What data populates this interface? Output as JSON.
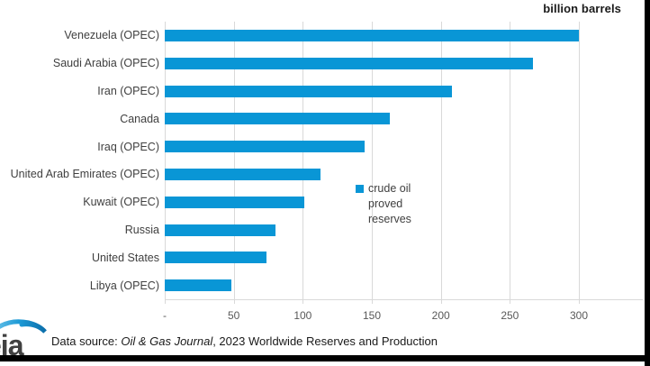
{
  "chart_data": {
    "type": "bar",
    "orientation": "horizontal",
    "unit_label": "billion barrels",
    "categories": [
      "Venezuela (OPEC)",
      "Saudi Arabia (OPEC)",
      "Iran (OPEC)",
      "Canada",
      "Iraq (OPEC)",
      "United Arab Emirates (OPEC)",
      "Kuwait (OPEC)",
      "Russia",
      "United States",
      "Libya (OPEC)"
    ],
    "series": [
      {
        "name": "crude oil proved reserves",
        "values": [
          300,
          267,
          208,
          163,
          145,
          113,
          101,
          80,
          74,
          48
        ]
      }
    ],
    "xlabel": "",
    "ylabel": "",
    "xlim": [
      0,
      350
    ],
    "xticks": [
      {
        "label": "-",
        "value": 0
      },
      {
        "label": "50",
        "value": 50
      },
      {
        "label": "100",
        "value": 100
      },
      {
        "label": "150",
        "value": 150
      },
      {
        "label": "200",
        "value": 200
      },
      {
        "label": "250",
        "value": 250
      },
      {
        "label": "300",
        "value": 300
      }
    ],
    "grid": "vertical",
    "legend_position": "right-middle",
    "legend_label": "crude oil proved reserves",
    "bar_color": "#0996d6",
    "gridline_color": "#d9d9d9"
  },
  "footer": {
    "logo_text": "eia",
    "source_prefix": "Data source: ",
    "source_journal": "Oil & Gas Journal",
    "source_suffix": ", 2023 Worldwide Reserves and Production"
  }
}
